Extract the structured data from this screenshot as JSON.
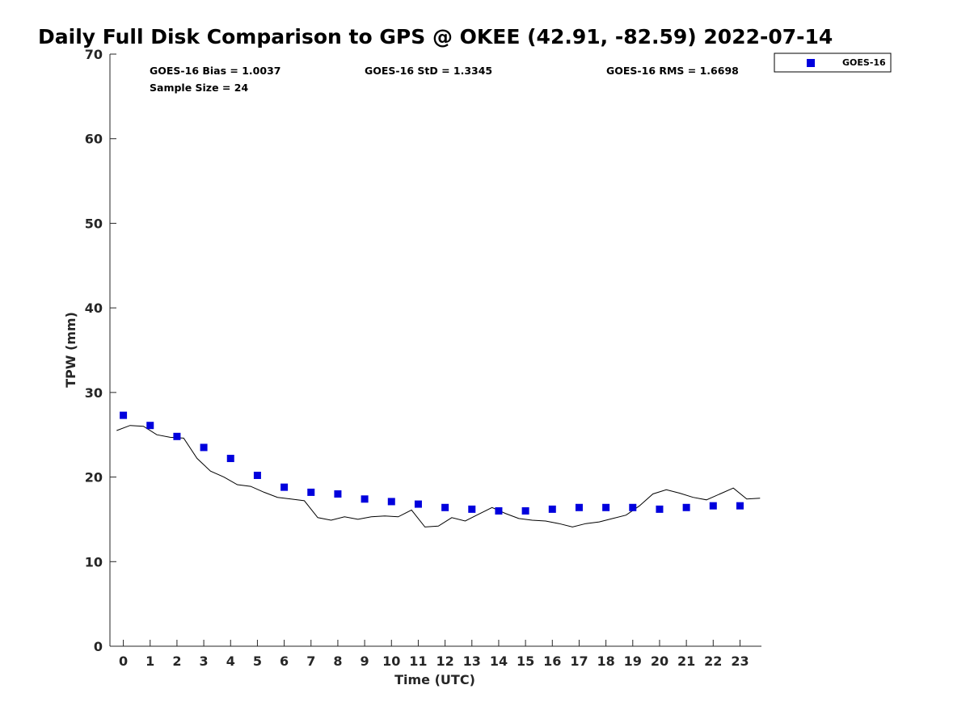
{
  "chart_data": {
    "type": "scatter",
    "title": "Daily Full Disk Comparison to GPS @ OKEE (42.91, -82.59) 2022-07-14",
    "xlabel": "Time (UTC)",
    "ylabel": "TPW (mm)",
    "xlim": [
      -0.5,
      23.8
    ],
    "ylim": [
      0,
      70
    ],
    "x_ticks": [
      0,
      1,
      2,
      3,
      4,
      5,
      6,
      7,
      8,
      9,
      10,
      11,
      12,
      13,
      14,
      15,
      16,
      17,
      18,
      19,
      20,
      21,
      22,
      23
    ],
    "y_ticks": [
      0,
      10,
      20,
      30,
      40,
      50,
      60,
      70
    ],
    "grid": false,
    "legend_position": "top-right",
    "stats": {
      "bias": "GOES-16 Bias = 1.0037",
      "std": "GOES-16 StD = 1.3345",
      "rms": "GOES-16 RMS = 1.6698",
      "sample": "Sample Size = 24"
    },
    "series": [
      {
        "name": "GOES-16",
        "kind": "marker",
        "color": "#0000dd",
        "x": [
          0,
          1,
          2,
          3,
          4,
          5,
          6,
          7,
          8,
          9,
          10,
          11,
          12,
          13,
          14,
          15,
          16,
          17,
          18,
          19,
          20,
          21,
          22,
          23
        ],
        "y": [
          27.3,
          26.1,
          24.8,
          23.5,
          22.2,
          20.2,
          18.8,
          18.2,
          18.0,
          17.4,
          17.1,
          16.8,
          16.4,
          16.2,
          16.0,
          16.0,
          16.2,
          16.4,
          16.4,
          16.4,
          16.2,
          16.4,
          16.6,
          16.6
        ]
      },
      {
        "kind": "line",
        "color": "#000000",
        "x": [
          -0.25,
          0.25,
          0.75,
          1.25,
          1.75,
          2.25,
          2.75,
          3.25,
          3.75,
          4.25,
          4.75,
          5.25,
          5.75,
          6.25,
          6.75,
          7.25,
          7.75,
          8.25,
          8.75,
          9.25,
          9.75,
          10.25,
          10.75,
          11.25,
          11.75,
          12.25,
          12.75,
          13.25,
          13.75,
          14.25,
          14.75,
          15.25,
          15.75,
          16.25,
          16.75,
          17.25,
          17.75,
          18.25,
          18.75,
          19.25,
          19.75,
          20.25,
          20.75,
          21.25,
          21.75,
          22.25,
          22.75,
          23.25,
          23.75
        ],
        "y": [
          25.5,
          26.1,
          26.0,
          25.0,
          24.7,
          24.6,
          22.2,
          20.7,
          20.0,
          19.1,
          18.9,
          18.2,
          17.6,
          17.4,
          17.2,
          15.2,
          14.9,
          15.3,
          15.0,
          15.3,
          15.4,
          15.3,
          16.1,
          14.1,
          14.2,
          15.2,
          14.8,
          15.6,
          16.4,
          15.7,
          15.1,
          14.9,
          14.8,
          14.5,
          14.1,
          14.5,
          14.7,
          15.1,
          15.5,
          16.6,
          18.0,
          18.5,
          18.1,
          17.6,
          17.3,
          18.0,
          18.7,
          17.4,
          17.5
        ]
      }
    ]
  }
}
